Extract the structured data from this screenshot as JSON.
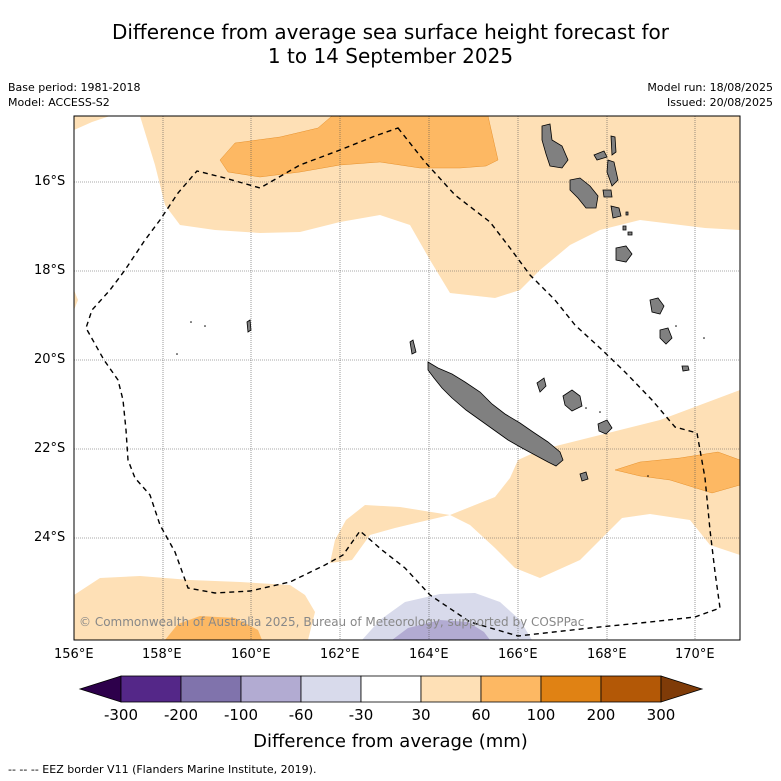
{
  "title": {
    "line1": "Difference from average sea surface height forecast for",
    "line2": "1 to 14 September 2025"
  },
  "meta_left": {
    "base_period": "Base period: 1981-2018",
    "model": "Model: ACCESS-S2"
  },
  "meta_right": {
    "model_run": "Model run: 18/08/2025",
    "issued": "Issued: 20/08/2025"
  },
  "map": {
    "lat_labels": [
      "16°S",
      "18°S",
      "20°S",
      "22°S",
      "24°S"
    ],
    "lon_labels": [
      "156°E",
      "158°E",
      "160°E",
      "162°E",
      "164°E",
      "166°E",
      "168°E",
      "170°E"
    ],
    "copyright": "© Commonwealth of Australia 2025, Bureau of Meteorology, supported by COSPPac",
    "land_color": "#808080"
  },
  "colorbar": {
    "title": "Difference from average (mm)",
    "tick_labels": [
      "-300",
      "-200",
      "-100",
      "-60",
      "-30",
      "30",
      "60",
      "100",
      "200",
      "300"
    ],
    "colors": [
      "#2d004b",
      "#542788",
      "#8073ac",
      "#b2abd2",
      "#d8daeb",
      "#ffffff",
      "#fee0b6",
      "#fdb863",
      "#e08214",
      "#b35806",
      "#7f3b08"
    ]
  },
  "footnote": "--  --  -- EEZ border V11 (Flanders Marine Institute, 2019)."
}
